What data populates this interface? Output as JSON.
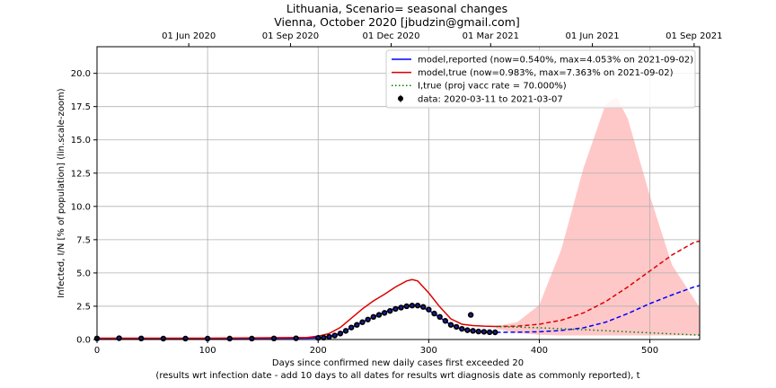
{
  "chart_data": {
    "type": "line",
    "title": "Lithuania, Scenario= seasonal changes",
    "subtitle": "Vienna, October 2020 [jbudzin@gmail.com]",
    "xlabel": "Days since confirmed new daily cases first exceeded 20",
    "xlabel2": "(results wrt infection date - add 10 days to all dates for results wrt diagnosis date as commonly reported), t",
    "ylabel": "Infected, I/N [% of population] (lin.scale-zoom)",
    "xlim": [
      0,
      545
    ],
    "ylim": [
      0,
      22
    ],
    "grid": true,
    "legend_position": "top-right",
    "x_ticks": [
      0,
      100,
      200,
      300,
      400,
      500
    ],
    "x_tick_labels": [
      "0",
      "100",
      "200",
      "300",
      "400",
      "500"
    ],
    "y_ticks": [
      0,
      2.5,
      5,
      7.5,
      10,
      12.5,
      15,
      17.5,
      20
    ],
    "y_tick_labels": [
      "0.0",
      "2.5",
      "5.0",
      "7.5",
      "10.0",
      "12.5",
      "15.0",
      "17.5",
      "20.0"
    ],
    "top_axis": {
      "ticks": [
        83,
        175,
        266,
        356,
        448,
        540
      ],
      "labels": [
        "01 Jun 2020",
        "01 Sep 2020",
        "01 Dec 2020",
        "01 Mar 2021",
        "01 Jun 2021",
        "01 Sep 2021"
      ]
    },
    "colors": {
      "reported": "#0000ff",
      "true": "#dd0000",
      "vacc": "#008000",
      "band": "#ffc8c8",
      "data": "#000000"
    },
    "series": [
      {
        "name": "model,reported (now=0.540%, max=4.053% on 2021-09-02)",
        "color": "#0000ff",
        "style": "solid-then-dashed",
        "split_x": 361,
        "x": [
          0,
          100,
          190,
          200,
          210,
          220,
          230,
          240,
          250,
          260,
          270,
          280,
          285,
          290,
          300,
          310,
          320,
          330,
          340,
          350,
          361,
          380,
          400,
          420,
          440,
          460,
          480,
          500,
          520,
          540,
          545
        ],
        "y": [
          0.08,
          0.08,
          0.1,
          0.13,
          0.22,
          0.45,
          0.9,
          1.3,
          1.7,
          2.05,
          2.35,
          2.55,
          2.58,
          2.55,
          2.2,
          1.65,
          1.1,
          0.75,
          0.62,
          0.56,
          0.54,
          0.55,
          0.58,
          0.68,
          0.88,
          1.3,
          1.95,
          2.7,
          3.35,
          3.95,
          4.05
        ]
      },
      {
        "name": "model,true (now=0.983%, max=7.363% on 2021-09-02)",
        "color": "#dd0000",
        "style": "solid-then-dashed",
        "split_x": 361,
        "x": [
          0,
          100,
          190,
          200,
          210,
          220,
          230,
          240,
          250,
          260,
          270,
          280,
          285,
          290,
          300,
          310,
          320,
          330,
          340,
          350,
          361,
          380,
          400,
          420,
          440,
          460,
          480,
          500,
          520,
          540,
          545
        ],
        "y": [
          0.1,
          0.1,
          0.15,
          0.25,
          0.45,
          0.9,
          1.6,
          2.3,
          2.9,
          3.4,
          3.95,
          4.4,
          4.5,
          4.4,
          3.5,
          2.45,
          1.55,
          1.15,
          1.05,
          1.0,
          0.98,
          1.0,
          1.15,
          1.45,
          2.0,
          2.85,
          3.95,
          5.15,
          6.35,
          7.3,
          7.4
        ]
      },
      {
        "name": "I,true (proj vacc rate = 70.000%)",
        "color": "#008000",
        "style": "dotted",
        "x": [
          361,
          400,
          450,
          500,
          545
        ],
        "y": [
          0.98,
          0.88,
          0.7,
          0.5,
          0.33
        ]
      },
      {
        "name": "data: 2020-03-11 to 2021-03-07",
        "type": "scatter",
        "color": "#000000",
        "x": [
          0,
          20,
          40,
          60,
          80,
          100,
          120,
          140,
          160,
          180,
          200,
          205,
          210,
          215,
          220,
          225,
          230,
          235,
          240,
          245,
          250,
          255,
          260,
          265,
          270,
          275,
          280,
          285,
          290,
          295,
          300,
          305,
          310,
          315,
          320,
          325,
          330,
          335,
          338,
          340,
          345,
          350,
          355,
          360
        ],
        "y": [
          0.08,
          0.1,
          0.08,
          0.07,
          0.07,
          0.07,
          0.07,
          0.07,
          0.08,
          0.09,
          0.12,
          0.14,
          0.2,
          0.3,
          0.45,
          0.65,
          0.9,
          1.1,
          1.3,
          1.5,
          1.7,
          1.85,
          2.0,
          2.15,
          2.3,
          2.4,
          2.5,
          2.55,
          2.55,
          2.45,
          2.25,
          1.95,
          1.7,
          1.4,
          1.1,
          0.95,
          0.8,
          0.7,
          1.85,
          0.65,
          0.6,
          0.58,
          0.55,
          0.54
        ]
      }
    ],
    "band": {
      "description": "uncertainty range",
      "x": [
        361,
        380,
        400,
        420,
        440,
        460,
        470,
        480,
        500,
        520,
        545
      ],
      "y_low": [
        0.8,
        0.5,
        0.35,
        0.3,
        0.3,
        0.3,
        0.3,
        0.3,
        0.3,
        0.3,
        0.3
      ],
      "y_high": [
        1.0,
        1.3,
        2.6,
        6.8,
        12.9,
        17.7,
        18.2,
        16.6,
        10.8,
        5.6,
        2.4
      ]
    }
  }
}
